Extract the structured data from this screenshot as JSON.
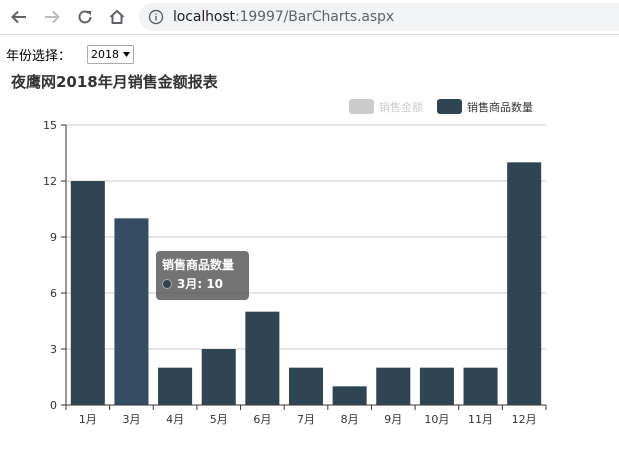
{
  "browser": {
    "url_host": "localhost",
    "url_rest": ":19997/BarCharts.aspx"
  },
  "form": {
    "year_label": "年份选择：",
    "year_value": "2018"
  },
  "report": {
    "title": "夜鹰网2018年月销售金额报表"
  },
  "legend": {
    "items": [
      {
        "label": "销售金额",
        "color": "#cccccc",
        "inactive": true
      },
      {
        "label": "销售商品数量",
        "color": "#2f4554",
        "inactive": false
      }
    ]
  },
  "tooltip": {
    "series": "销售商品数量",
    "value_text": "3月: 10"
  },
  "colors": {
    "bar": "#2f4554",
    "bar_highlight": "#354c63",
    "axis": "#333333",
    "grid": "#cccccc"
  },
  "chart_data": {
    "type": "bar",
    "categories": [
      "1月",
      "3月",
      "4月",
      "5月",
      "6月",
      "7月",
      "8月",
      "9月",
      "10月",
      "11月",
      "12月"
    ],
    "series": [
      {
        "name": "销售商品数量",
        "values": [
          12,
          10,
          2,
          3,
          5,
          2,
          1,
          2,
          2,
          2,
          13
        ]
      }
    ],
    "ylim": [
      0,
      15
    ],
    "yticks": [
      0,
      3,
      6,
      9,
      12,
      15
    ],
    "grid": true,
    "legend_position": "top-right",
    "highlighted_category": "3月"
  }
}
